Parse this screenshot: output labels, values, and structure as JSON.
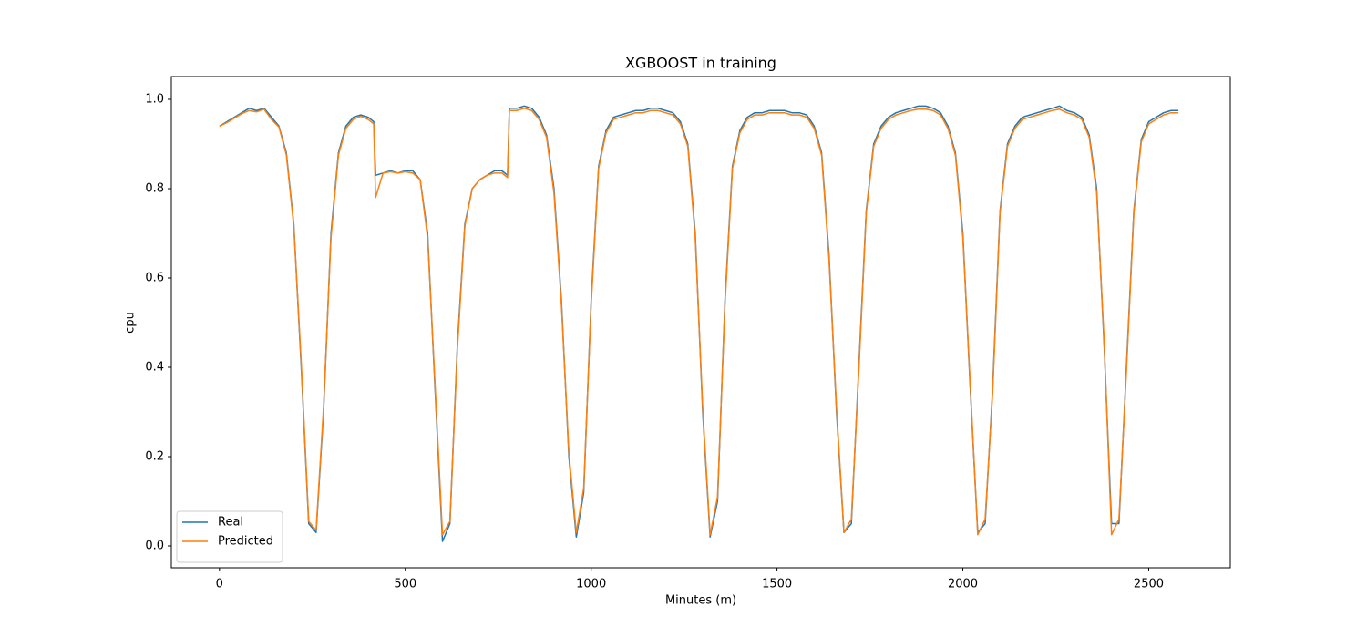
{
  "chart_data": {
    "type": "line",
    "title": "XGBOOST in training",
    "x_label": "Minutes (m)",
    "y_label": "cpu",
    "x": [
      0,
      20,
      40,
      60,
      80,
      100,
      120,
      140,
      160,
      180,
      200,
      220,
      240,
      260,
      280,
      300,
      320,
      340,
      360,
      380,
      400,
      415,
      420,
      440,
      460,
      480,
      500,
      520,
      540,
      560,
      580,
      600,
      620,
      640,
      660,
      680,
      700,
      720,
      740,
      760,
      775,
      780,
      800,
      820,
      840,
      860,
      880,
      900,
      920,
      940,
      960,
      980,
      1000,
      1020,
      1040,
      1060,
      1080,
      1100,
      1120,
      1140,
      1160,
      1180,
      1200,
      1220,
      1240,
      1260,
      1280,
      1300,
      1320,
      1340,
      1360,
      1380,
      1400,
      1420,
      1440,
      1460,
      1480,
      1500,
      1520,
      1540,
      1560,
      1580,
      1600,
      1620,
      1640,
      1660,
      1680,
      1700,
      1720,
      1740,
      1760,
      1780,
      1800,
      1820,
      1840,
      1860,
      1880,
      1900,
      1920,
      1940,
      1960,
      1980,
      2000,
      2020,
      2040,
      2060,
      2080,
      2100,
      2120,
      2140,
      2160,
      2180,
      2200,
      2220,
      2240,
      2260,
      2280,
      2300,
      2320,
      2340,
      2360,
      2380,
      2400,
      2420,
      2440,
      2460,
      2480,
      2500,
      2520,
      2540,
      2560,
      2580
    ],
    "series": [
      {
        "name": "Real",
        "color": "#1f77b4",
        "values": [
          0.94,
          0.95,
          0.96,
          0.97,
          0.98,
          0.975,
          0.98,
          0.96,
          0.94,
          0.88,
          0.72,
          0.4,
          0.05,
          0.03,
          0.3,
          0.7,
          0.88,
          0.94,
          0.96,
          0.965,
          0.96,
          0.95,
          0.83,
          0.835,
          0.84,
          0.835,
          0.84,
          0.84,
          0.82,
          0.7,
          0.35,
          0.01,
          0.05,
          0.45,
          0.72,
          0.8,
          0.82,
          0.83,
          0.84,
          0.84,
          0.83,
          0.98,
          0.98,
          0.985,
          0.98,
          0.96,
          0.92,
          0.8,
          0.55,
          0.2,
          0.02,
          0.12,
          0.55,
          0.85,
          0.93,
          0.96,
          0.965,
          0.97,
          0.975,
          0.975,
          0.98,
          0.98,
          0.975,
          0.97,
          0.95,
          0.9,
          0.7,
          0.3,
          0.02,
          0.1,
          0.55,
          0.85,
          0.93,
          0.96,
          0.97,
          0.97,
          0.975,
          0.975,
          0.975,
          0.97,
          0.97,
          0.965,
          0.94,
          0.88,
          0.65,
          0.3,
          0.03,
          0.05,
          0.4,
          0.75,
          0.9,
          0.94,
          0.96,
          0.97,
          0.975,
          0.98,
          0.985,
          0.985,
          0.98,
          0.97,
          0.94,
          0.88,
          0.7,
          0.35,
          0.03,
          0.05,
          0.35,
          0.75,
          0.9,
          0.94,
          0.96,
          0.965,
          0.97,
          0.975,
          0.98,
          0.985,
          0.975,
          0.97,
          0.96,
          0.92,
          0.8,
          0.45,
          0.05,
          0.05,
          0.4,
          0.75,
          0.91,
          0.95,
          0.96,
          0.97,
          0.975,
          0.975
        ]
      },
      {
        "name": "Predicted",
        "color": "#ff7f0e",
        "values": [
          0.94,
          0.948,
          0.958,
          0.968,
          0.975,
          0.972,
          0.978,
          0.955,
          0.938,
          0.875,
          0.715,
          0.41,
          0.055,
          0.035,
          0.31,
          0.69,
          0.875,
          0.935,
          0.955,
          0.962,
          0.955,
          0.945,
          0.78,
          0.835,
          0.838,
          0.835,
          0.838,
          0.835,
          0.82,
          0.69,
          0.36,
          0.025,
          0.055,
          0.44,
          0.715,
          0.8,
          0.82,
          0.83,
          0.835,
          0.835,
          0.825,
          0.975,
          0.975,
          0.98,
          0.975,
          0.955,
          0.915,
          0.79,
          0.54,
          0.21,
          0.03,
          0.13,
          0.54,
          0.845,
          0.925,
          0.955,
          0.96,
          0.965,
          0.97,
          0.97,
          0.975,
          0.975,
          0.97,
          0.965,
          0.945,
          0.895,
          0.69,
          0.31,
          0.025,
          0.11,
          0.54,
          0.845,
          0.925,
          0.955,
          0.965,
          0.965,
          0.97,
          0.97,
          0.97,
          0.965,
          0.965,
          0.96,
          0.935,
          0.875,
          0.64,
          0.31,
          0.03,
          0.06,
          0.39,
          0.745,
          0.895,
          0.935,
          0.955,
          0.965,
          0.97,
          0.975,
          0.978,
          0.978,
          0.975,
          0.965,
          0.935,
          0.875,
          0.69,
          0.36,
          0.025,
          0.06,
          0.34,
          0.745,
          0.895,
          0.935,
          0.955,
          0.96,
          0.965,
          0.97,
          0.975,
          0.978,
          0.97,
          0.965,
          0.955,
          0.915,
          0.79,
          0.46,
          0.025,
          0.06,
          0.39,
          0.745,
          0.905,
          0.945,
          0.955,
          0.965,
          0.97,
          0.97
        ]
      }
    ],
    "xlim": [
      -129.5,
      2719.5
    ],
    "ylim": [
      -0.049,
      1.051
    ],
    "xticks": [
      0,
      500,
      1000,
      1500,
      2000,
      2500
    ],
    "yticks": [
      {
        "value": 0,
        "label": "0.0"
      },
      0.2,
      0.4,
      0.6,
      0.8,
      {
        "value": 1,
        "label": "1.0"
      }
    ],
    "legend": "lower left",
    "grid": false
  }
}
